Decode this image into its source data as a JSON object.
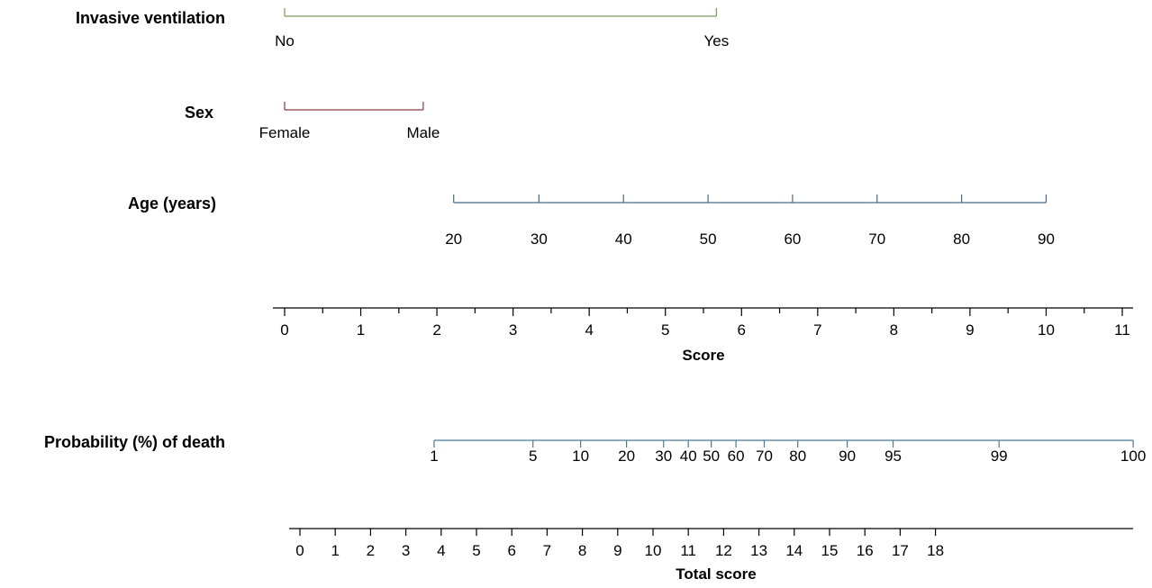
{
  "chart_data": {
    "type": "nomogram",
    "colors": {
      "invasive_ventilation": "#7a9a5a",
      "sex": "#8c3a4a",
      "age": "#4a6a8a",
      "probability": "#4a7a9a",
      "axis": "#000000"
    },
    "variables": [
      {
        "key": "invasive_ventilation",
        "label": "Invasive ventilation",
        "levels": [
          {
            "label": "No",
            "score": 0
          },
          {
            "label": "Yes",
            "score": 5.67
          }
        ]
      },
      {
        "key": "sex",
        "label": "Sex",
        "levels": [
          {
            "label": "Female",
            "score": 0
          },
          {
            "label": "Male",
            "score": 1.82
          }
        ]
      },
      {
        "key": "age",
        "label": "Age (years)",
        "levels": [
          {
            "label": "20",
            "score": 2.22
          },
          {
            "label": "30",
            "score": 3.34
          },
          {
            "label": "40",
            "score": 4.45
          },
          {
            "label": "50",
            "score": 5.56
          },
          {
            "label": "60",
            "score": 6.67
          },
          {
            "label": "70",
            "score": 7.78
          },
          {
            "label": "80",
            "score": 8.89
          },
          {
            "label": "90",
            "score": 10.0
          }
        ]
      }
    ],
    "score_axis": {
      "title": "Score",
      "min": 0,
      "max": 11,
      "major_ticks": [
        "0",
        "1",
        "2",
        "3",
        "4",
        "5",
        "6",
        "7",
        "8",
        "9",
        "10",
        "11"
      ]
    },
    "probability": {
      "label": "Probability (%) of death",
      "points": [
        {
          "label": "1",
          "total": 3.8
        },
        {
          "label": "5",
          "total": 6.6
        },
        {
          "label": "10",
          "total": 7.95
        },
        {
          "label": "20",
          "total": 9.25
        },
        {
          "label": "30",
          "total": 10.3
        },
        {
          "label": "40",
          "total": 11.0
        },
        {
          "label": "50",
          "total": 11.65
        },
        {
          "label": "60",
          "total": 12.35
        },
        {
          "label": "70",
          "total": 13.15
        },
        {
          "label": "80",
          "total": 14.1
        },
        {
          "label": "90",
          "total": 15.5
        },
        {
          "label": "95",
          "total": 16.8
        },
        {
          "label": "99",
          "total": 19.8
        },
        {
          "label": "100",
          "total": 23.6
        }
      ]
    },
    "total_axis": {
      "title": "Total score",
      "min": 0,
      "max": 23.6,
      "tick_labels": [
        "0",
        "1",
        "2",
        "3",
        "4",
        "5",
        "6",
        "7",
        "8",
        "9",
        "10",
        "11",
        "12",
        "13",
        "14",
        "15",
        "16",
        "17",
        "18"
      ]
    }
  }
}
